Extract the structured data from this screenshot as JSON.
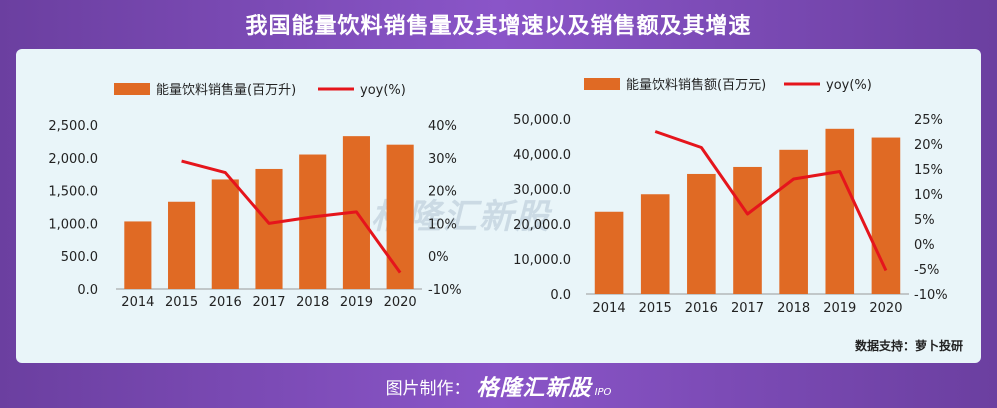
{
  "header": {
    "title": "我国能量饮料销售量及其增速以及销售额及其增速"
  },
  "watermark": "格隆汇新股",
  "source": "数据支持：萝卜投研",
  "footer": {
    "label": "图片制作：",
    "brand": "格隆汇新股",
    "brand_sub": "IPO"
  },
  "colors": {
    "bar": "#e06a24",
    "line": "#e5151c"
  },
  "chart_data": [
    {
      "type": "bar",
      "categories": [
        "2014",
        "2015",
        "2016",
        "2017",
        "2018",
        "2019",
        "2020"
      ],
      "series": [
        {
          "name": "能量饮料销售量(百万升)",
          "type": "bar",
          "axis": "left",
          "values": [
            1030,
            1330,
            1670,
            1830,
            2050,
            2330,
            2200
          ]
        },
        {
          "name": "yoy(%)",
          "type": "line",
          "axis": "right",
          "values": [
            null,
            29,
            25.5,
            10,
            12,
            13.5,
            -5
          ]
        }
      ],
      "ylim_left": [
        0,
        2500
      ],
      "yticks_left": [
        "0.0",
        "500.0",
        "1,000.0",
        "1,500.0",
        "2,000.0",
        "2,500.0"
      ],
      "ylim_right": [
        -10,
        40
      ],
      "yticks_right": [
        "-10%",
        "0%",
        "10%",
        "20%",
        "30%",
        "40%"
      ],
      "legend_position": "top"
    },
    {
      "type": "bar",
      "categories": [
        "2014",
        "2015",
        "2016",
        "2017",
        "2018",
        "2019",
        "2020"
      ],
      "series": [
        {
          "name": "能量饮料销售额(百万元)",
          "type": "bar",
          "axis": "left",
          "values": [
            23500,
            28500,
            34300,
            36300,
            41200,
            47200,
            44700
          ]
        },
        {
          "name": "yoy(%)",
          "type": "line",
          "axis": "right",
          "values": [
            null,
            22.5,
            19.3,
            6,
            13,
            14.5,
            -5.3
          ]
        }
      ],
      "ylim_left": [
        0,
        50000
      ],
      "yticks_left": [
        "0.0",
        "10,000.0",
        "20,000.0",
        "30,000.0",
        "40,000.0",
        "50,000.0"
      ],
      "ylim_right": [
        -10,
        25
      ],
      "yticks_right": [
        "-10%",
        "-5%",
        "0%",
        "5%",
        "10%",
        "15%",
        "20%",
        "25%"
      ],
      "legend_position": "top"
    }
  ]
}
